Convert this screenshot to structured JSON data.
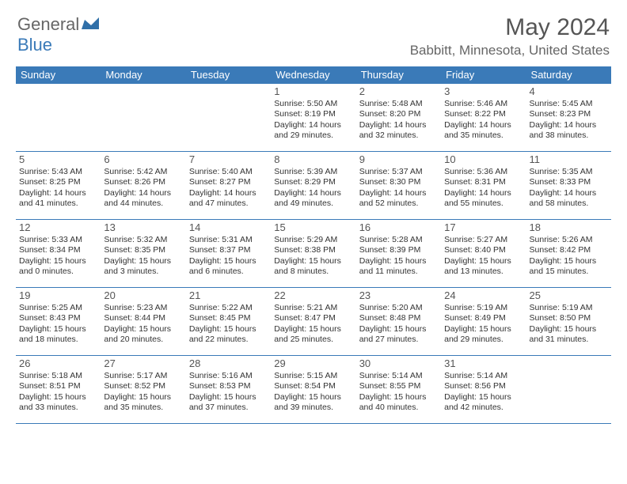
{
  "brand": {
    "part1": "General",
    "part2": "Blue"
  },
  "title": "May 2024",
  "location": "Babbitt, Minnesota, United States",
  "colors": {
    "header_bg": "#3a7ab8",
    "header_text": "#ffffff",
    "border": "#3a7ab8",
    "text": "#333333",
    "title_text": "#555555",
    "brand_gray": "#666666",
    "brand_blue": "#3a7ab8"
  },
  "weekdays": [
    "Sunday",
    "Monday",
    "Tuesday",
    "Wednesday",
    "Thursday",
    "Friday",
    "Saturday"
  ],
  "weeks": [
    [
      null,
      null,
      null,
      {
        "n": "1",
        "sr": "5:50 AM",
        "ss": "8:19 PM",
        "dl1": "14 hours",
        "dl2": "and 29 minutes."
      },
      {
        "n": "2",
        "sr": "5:48 AM",
        "ss": "8:20 PM",
        "dl1": "14 hours",
        "dl2": "and 32 minutes."
      },
      {
        "n": "3",
        "sr": "5:46 AM",
        "ss": "8:22 PM",
        "dl1": "14 hours",
        "dl2": "and 35 minutes."
      },
      {
        "n": "4",
        "sr": "5:45 AM",
        "ss": "8:23 PM",
        "dl1": "14 hours",
        "dl2": "and 38 minutes."
      }
    ],
    [
      {
        "n": "5",
        "sr": "5:43 AM",
        "ss": "8:25 PM",
        "dl1": "14 hours",
        "dl2": "and 41 minutes."
      },
      {
        "n": "6",
        "sr": "5:42 AM",
        "ss": "8:26 PM",
        "dl1": "14 hours",
        "dl2": "and 44 minutes."
      },
      {
        "n": "7",
        "sr": "5:40 AM",
        "ss": "8:27 PM",
        "dl1": "14 hours",
        "dl2": "and 47 minutes."
      },
      {
        "n": "8",
        "sr": "5:39 AM",
        "ss": "8:29 PM",
        "dl1": "14 hours",
        "dl2": "and 49 minutes."
      },
      {
        "n": "9",
        "sr": "5:37 AM",
        "ss": "8:30 PM",
        "dl1": "14 hours",
        "dl2": "and 52 minutes."
      },
      {
        "n": "10",
        "sr": "5:36 AM",
        "ss": "8:31 PM",
        "dl1": "14 hours",
        "dl2": "and 55 minutes."
      },
      {
        "n": "11",
        "sr": "5:35 AM",
        "ss": "8:33 PM",
        "dl1": "14 hours",
        "dl2": "and 58 minutes."
      }
    ],
    [
      {
        "n": "12",
        "sr": "5:33 AM",
        "ss": "8:34 PM",
        "dl1": "15 hours",
        "dl2": "and 0 minutes."
      },
      {
        "n": "13",
        "sr": "5:32 AM",
        "ss": "8:35 PM",
        "dl1": "15 hours",
        "dl2": "and 3 minutes."
      },
      {
        "n": "14",
        "sr": "5:31 AM",
        "ss": "8:37 PM",
        "dl1": "15 hours",
        "dl2": "and 6 minutes."
      },
      {
        "n": "15",
        "sr": "5:29 AM",
        "ss": "8:38 PM",
        "dl1": "15 hours",
        "dl2": "and 8 minutes."
      },
      {
        "n": "16",
        "sr": "5:28 AM",
        "ss": "8:39 PM",
        "dl1": "15 hours",
        "dl2": "and 11 minutes."
      },
      {
        "n": "17",
        "sr": "5:27 AM",
        "ss": "8:40 PM",
        "dl1": "15 hours",
        "dl2": "and 13 minutes."
      },
      {
        "n": "18",
        "sr": "5:26 AM",
        "ss": "8:42 PM",
        "dl1": "15 hours",
        "dl2": "and 15 minutes."
      }
    ],
    [
      {
        "n": "19",
        "sr": "5:25 AM",
        "ss": "8:43 PM",
        "dl1": "15 hours",
        "dl2": "and 18 minutes."
      },
      {
        "n": "20",
        "sr": "5:23 AM",
        "ss": "8:44 PM",
        "dl1": "15 hours",
        "dl2": "and 20 minutes."
      },
      {
        "n": "21",
        "sr": "5:22 AM",
        "ss": "8:45 PM",
        "dl1": "15 hours",
        "dl2": "and 22 minutes."
      },
      {
        "n": "22",
        "sr": "5:21 AM",
        "ss": "8:47 PM",
        "dl1": "15 hours",
        "dl2": "and 25 minutes."
      },
      {
        "n": "23",
        "sr": "5:20 AM",
        "ss": "8:48 PM",
        "dl1": "15 hours",
        "dl2": "and 27 minutes."
      },
      {
        "n": "24",
        "sr": "5:19 AM",
        "ss": "8:49 PM",
        "dl1": "15 hours",
        "dl2": "and 29 minutes."
      },
      {
        "n": "25",
        "sr": "5:19 AM",
        "ss": "8:50 PM",
        "dl1": "15 hours",
        "dl2": "and 31 minutes."
      }
    ],
    [
      {
        "n": "26",
        "sr": "5:18 AM",
        "ss": "8:51 PM",
        "dl1": "15 hours",
        "dl2": "and 33 minutes."
      },
      {
        "n": "27",
        "sr": "5:17 AM",
        "ss": "8:52 PM",
        "dl1": "15 hours",
        "dl2": "and 35 minutes."
      },
      {
        "n": "28",
        "sr": "5:16 AM",
        "ss": "8:53 PM",
        "dl1": "15 hours",
        "dl2": "and 37 minutes."
      },
      {
        "n": "29",
        "sr": "5:15 AM",
        "ss": "8:54 PM",
        "dl1": "15 hours",
        "dl2": "and 39 minutes."
      },
      {
        "n": "30",
        "sr": "5:14 AM",
        "ss": "8:55 PM",
        "dl1": "15 hours",
        "dl2": "and 40 minutes."
      },
      {
        "n": "31",
        "sr": "5:14 AM",
        "ss": "8:56 PM",
        "dl1": "15 hours",
        "dl2": "and 42 minutes."
      },
      null
    ]
  ],
  "labels": {
    "sunrise_prefix": "Sunrise: ",
    "sunset_prefix": "Sunset: ",
    "daylight_prefix": "Daylight: "
  }
}
